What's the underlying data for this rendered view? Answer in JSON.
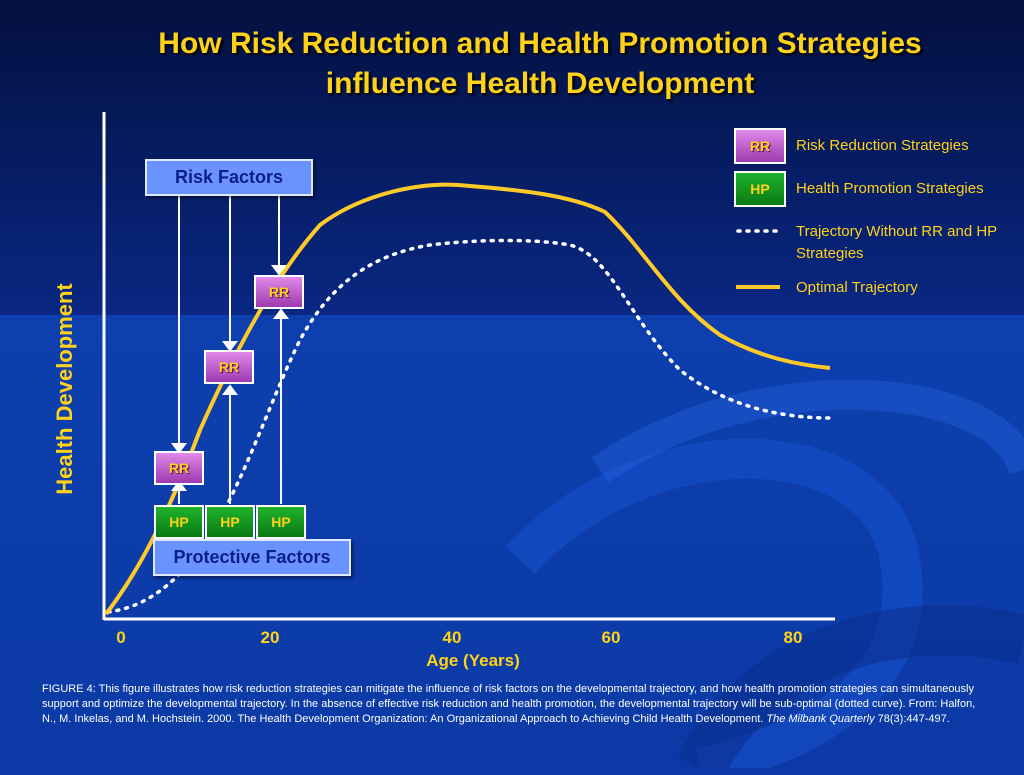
{
  "title": {
    "line1": "How Risk Reduction and Health Promotion Strategies",
    "line2": "influence Health Development"
  },
  "axes": {
    "ylabel": "Health Development",
    "xlabel": "Age (Years)",
    "xticks": [
      "0",
      "20",
      "40",
      "60",
      "80"
    ]
  },
  "boxes": {
    "risk_factors": "Risk Factors",
    "protective_factors": "Protective Factors",
    "rr": "RR",
    "hp": "HP"
  },
  "legend": {
    "rr_label": "Risk Reduction Strategies",
    "hp_label": "Health Promotion Strategies",
    "dotted_label": "Trajectory Without RR and HP Strategies",
    "solid_label": "Optimal Trajectory"
  },
  "caption": {
    "text": "FIGURE 4:  This figure  illustrates how risk reduction strategies can mitigate the influence of risk factors on the developmental trajectory, and how health promotion strategies can simultaneously support and optimize the developmental trajectory.  In the absence of effective risk reduction and health promotion, the developmental trajectory will be sub-optimal (dotted curve).  From: Halfon, N., M. Inkelas, and M. Hochstein. 2000. The Health Development Organization: An Organizational Approach to Achieving Child Health Development. ",
    "journal": "The Milbank Quarterly",
    "citation": " 78(3):447-497."
  },
  "colors": {
    "gold": "#ffd21a",
    "rr_magenta": "#c15fd0",
    "hp_green": "#139a1f",
    "factor_blue": "#6a93ff"
  }
}
